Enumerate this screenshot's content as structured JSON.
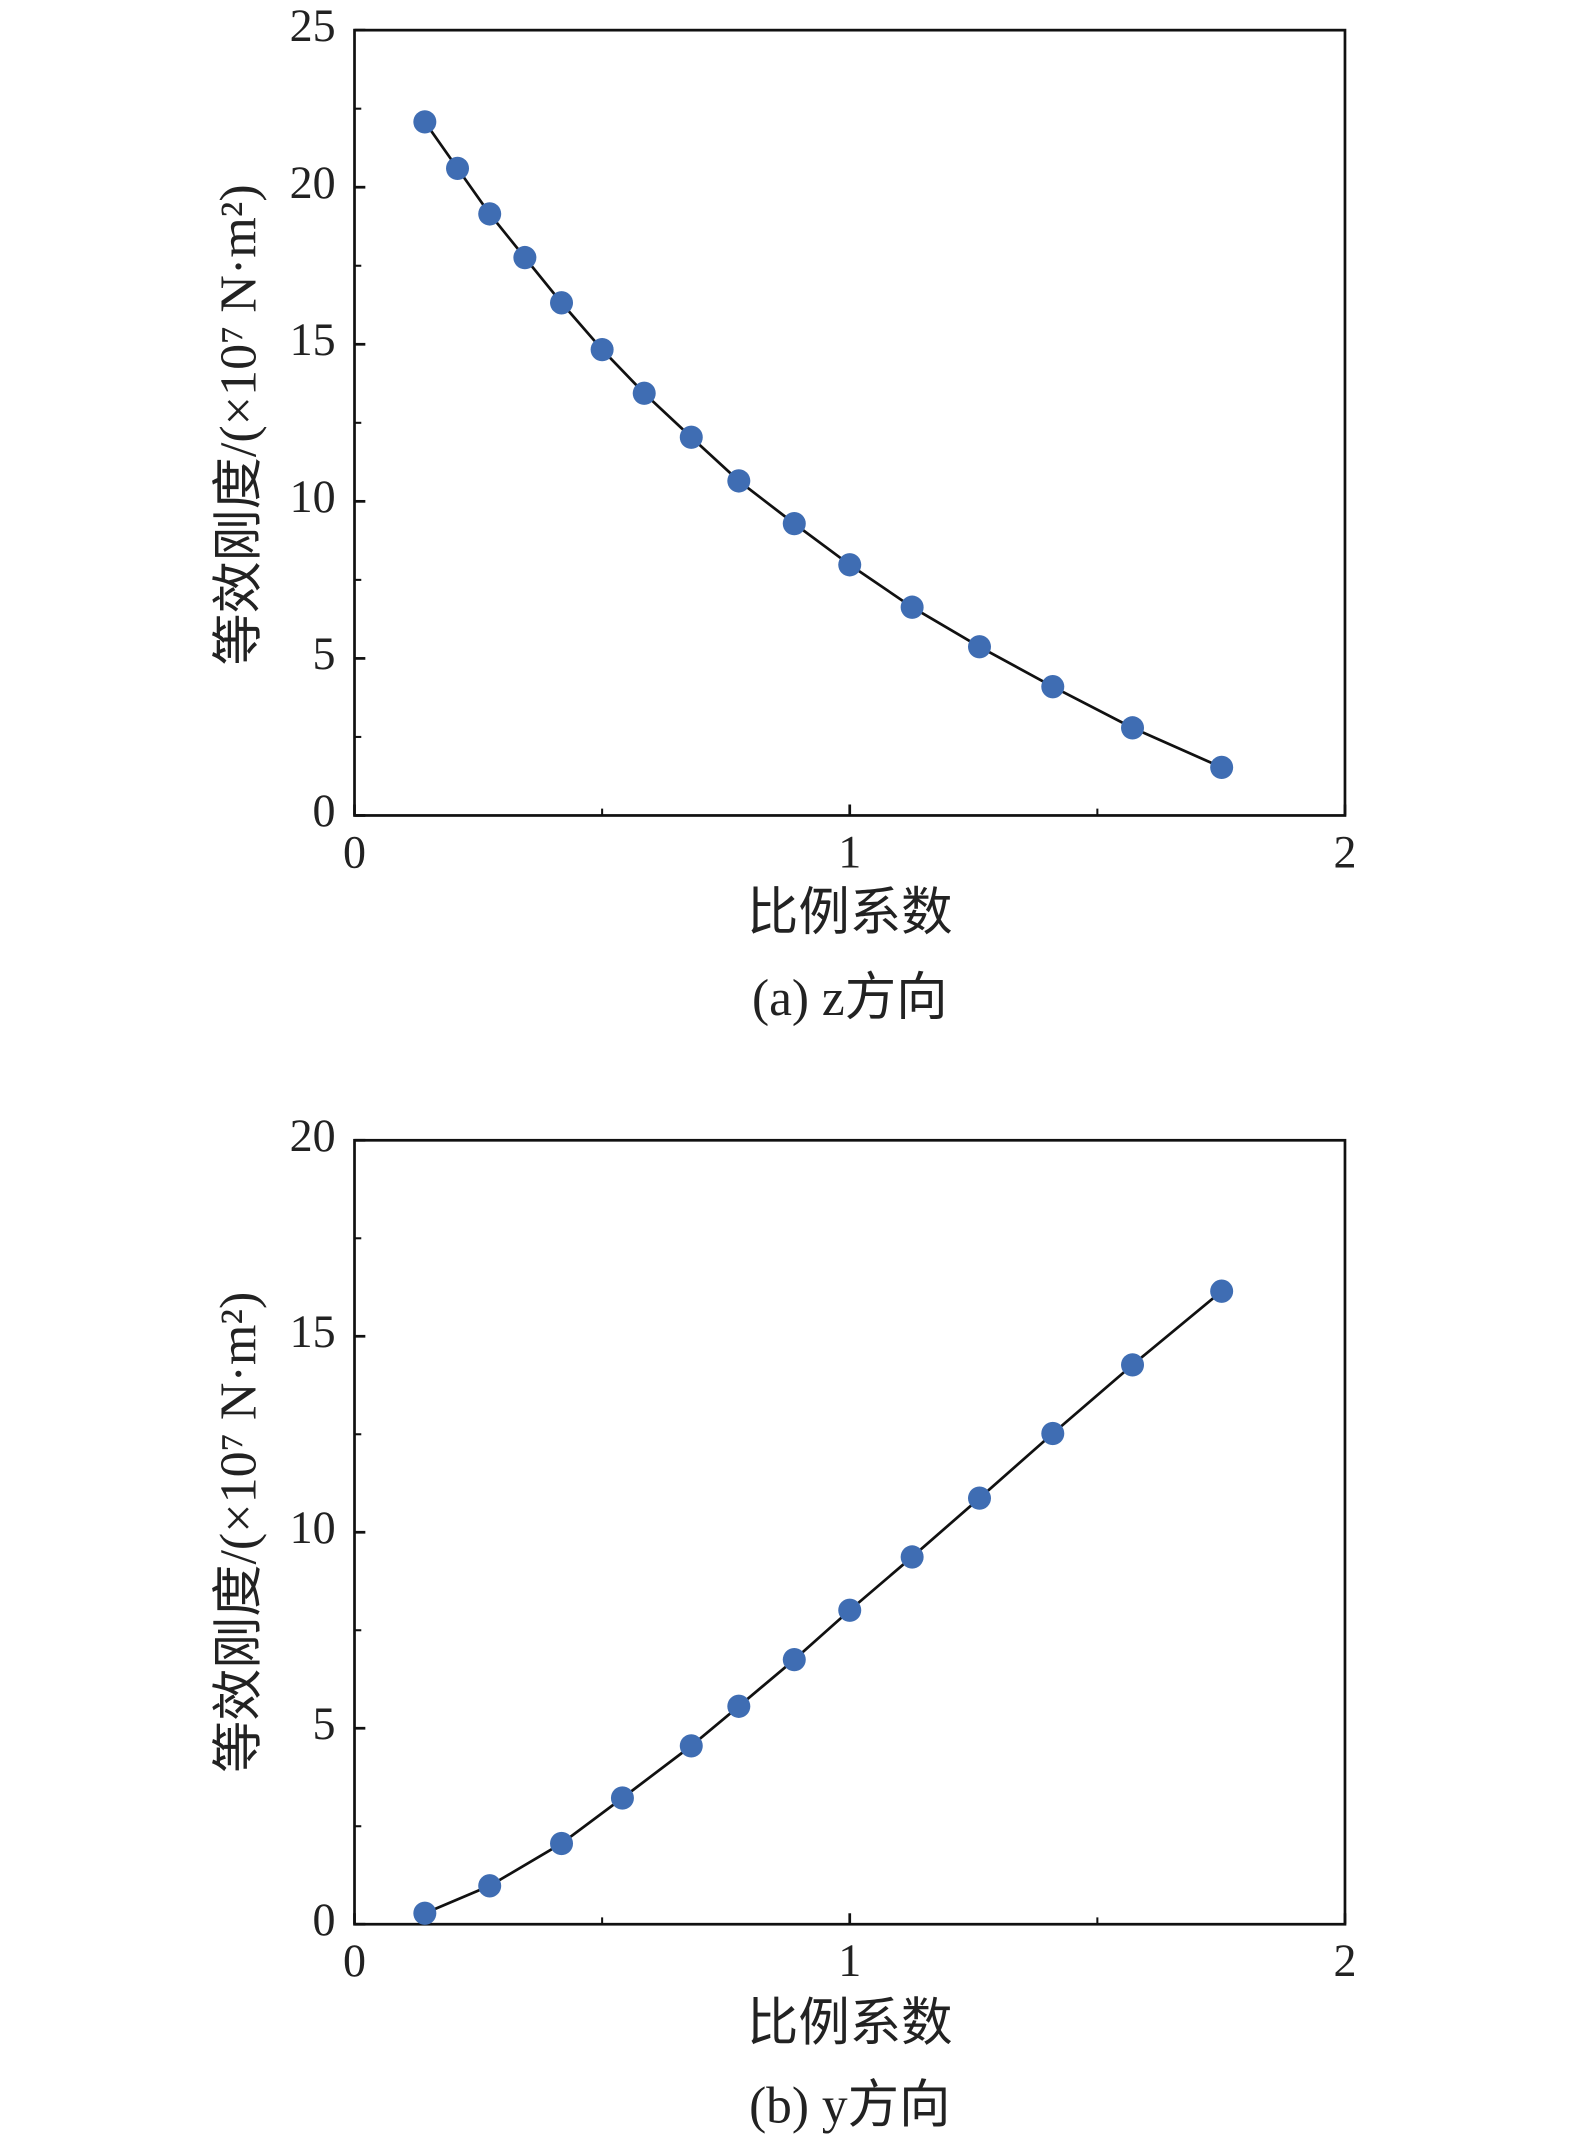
{
  "chart_data": [
    {
      "type": "scatter-line",
      "caption": "(a) z方向",
      "xlabel": "比例系数",
      "ylabel": "等效刚度/(×10⁷ N·m²)",
      "x": [
        0.142,
        0.208,
        0.273,
        0.344,
        0.418,
        0.5,
        0.585,
        0.68,
        0.776,
        0.888,
        1.0,
        1.126,
        1.262,
        1.41,
        1.571,
        1.751
      ],
      "values": [
        22.08,
        20.6,
        19.15,
        17.76,
        16.32,
        14.83,
        13.44,
        12.04,
        10.65,
        9.29,
        7.98,
        6.63,
        5.37,
        4.1,
        2.79,
        1.53
      ],
      "color": "#3f6db3",
      "line_color": "#111111",
      "xlim": [
        0,
        2
      ],
      "xticks": [
        0,
        1,
        2
      ],
      "xminorticks": [
        0.5,
        1.5
      ],
      "ylim": [
        0,
        25
      ],
      "yticks": [
        0,
        5,
        10,
        15,
        20,
        25
      ],
      "yminorticks": [
        2.5,
        7.5,
        12.5,
        17.5,
        22.5
      ]
    },
    {
      "type": "scatter-line",
      "caption": "(b) y方向",
      "xlabel": "比例系数",
      "ylabel": "等效刚度/(×10⁷ N·m²)",
      "x": [
        0.142,
        0.273,
        0.418,
        0.541,
        0.68,
        0.776,
        0.888,
        1.0,
        1.126,
        1.262,
        1.41,
        1.571,
        1.751
      ],
      "values": [
        0.28,
        0.98,
        2.06,
        3.22,
        4.55,
        5.56,
        6.75,
        8.01,
        9.37,
        10.87,
        12.52,
        14.27,
        16.15
      ],
      "color": "#3f6db3",
      "line_color": "#111111",
      "xlim": [
        0,
        2
      ],
      "xticks": [
        0,
        1,
        2
      ],
      "xminorticks": [
        0.5,
        1.5
      ],
      "ylim": [
        0,
        20
      ],
      "yticks": [
        0,
        5,
        10,
        15,
        20
      ],
      "yminorticks": [
        2.5,
        7.5,
        12.5,
        17.5
      ]
    }
  ]
}
